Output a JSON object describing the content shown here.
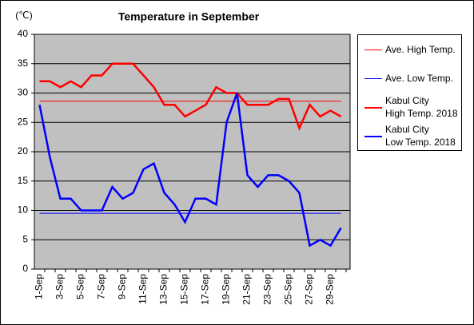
{
  "chart_data": {
    "type": "line",
    "title": "Temperature in September",
    "y_label": "(℃)",
    "categories": [
      "1-Sep",
      null,
      "3-Sep",
      null,
      "5-Sep",
      null,
      "7-Sep",
      null,
      "9-Sep",
      null,
      "11-Sep",
      null,
      "13-Sep",
      null,
      "15-Sep",
      null,
      "17-Sep",
      null,
      "19-Sep",
      null,
      "21-Sep",
      null,
      "23-Sep",
      null,
      "25-Sep",
      null,
      "27-Sep",
      null,
      "29-Sep",
      null
    ],
    "series": [
      {
        "name": "Ave. High Temp.",
        "color": "#ff0000",
        "width": 1,
        "values": [
          28.6,
          28.6,
          28.6,
          28.6,
          28.6,
          28.6,
          28.6,
          28.6,
          28.6,
          28.6,
          28.6,
          28.6,
          28.6,
          28.6,
          28.6,
          28.6,
          28.6,
          28.6,
          28.6,
          28.6,
          28.6,
          28.6,
          28.6,
          28.6,
          28.6,
          28.6,
          28.6,
          28.6,
          28.6,
          28.6
        ]
      },
      {
        "name": "Ave. Low Temp.",
        "color": "#0000ff",
        "width": 1,
        "values": [
          9.5,
          9.5,
          9.5,
          9.5,
          9.5,
          9.5,
          9.5,
          9.5,
          9.5,
          9.5,
          9.5,
          9.5,
          9.5,
          9.5,
          9.5,
          9.5,
          9.5,
          9.5,
          9.5,
          9.5,
          9.5,
          9.5,
          9.5,
          9.5,
          9.5,
          9.5,
          9.5,
          9.5,
          9.5,
          9.5
        ]
      },
      {
        "name": "Kabul City\nHigh Temp. 2018",
        "color": "#ff0000",
        "width": 2.5,
        "values": [
          32,
          32,
          31,
          32,
          31,
          33,
          33,
          35,
          35,
          35,
          33,
          31,
          28,
          28,
          26,
          27,
          28,
          31,
          30,
          30,
          28,
          28,
          28,
          29,
          29,
          24,
          28,
          26,
          27,
          26
        ]
      },
      {
        "name": "Kabul City\nLow Temp. 2018",
        "color": "#0000ff",
        "width": 2.5,
        "values": [
          28,
          19,
          12,
          12,
          10,
          10,
          10,
          14,
          12,
          13,
          17,
          18,
          13,
          11,
          8,
          12,
          12,
          11,
          25,
          30,
          16,
          14,
          16,
          16,
          15,
          13,
          4,
          5,
          4,
          7
        ]
      }
    ],
    "ylim": [
      0,
      40
    ],
    "yticks": [
      0,
      5,
      10,
      15,
      20,
      25,
      30,
      35,
      40
    ],
    "grid": true,
    "legend": "right"
  }
}
